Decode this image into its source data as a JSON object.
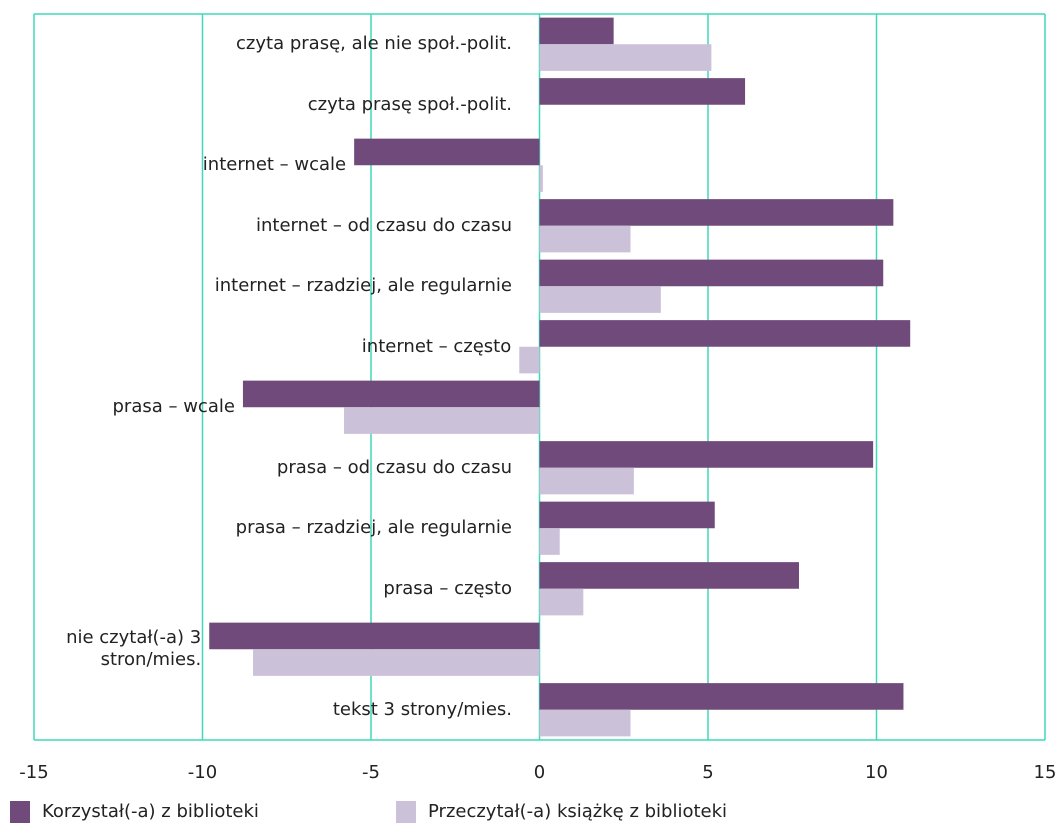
{
  "chart_data": {
    "type": "barh",
    "categories": [
      "czyta prasę, ale nie społ.-polit.",
      "czyta prasę społ.-polit.",
      "internet – wcale",
      "internet – od czasu do czasu",
      "internet – rzadziej, ale regularnie",
      "internet – często",
      "prasa – wcale",
      "prasa – od czasu do czasu",
      "prasa – rzadziej, ale regularnie",
      "prasa – często",
      "nie czytał(-a) 3 stron/mies.",
      "tekst 3 strony/mies."
    ],
    "series": [
      {
        "name": "Korzystał(-a) z biblioteki",
        "color": "#6f4a7a",
        "values": [
          2.2,
          6.1,
          -5.5,
          10.5,
          10.2,
          11.0,
          -8.8,
          9.9,
          5.2,
          7.7,
          -9.8,
          10.8
        ]
      },
      {
        "name": "Przeczytał(-a) książkę z biblioteki",
        "color": "#cbc1d9",
        "values": [
          5.1,
          0,
          0.1,
          2.7,
          3.6,
          -0.6,
          -5.8,
          2.8,
          0.6,
          1.3,
          -8.5,
          2.7
        ]
      }
    ],
    "xlim": [
      -15,
      15
    ],
    "xticks": [
      -15,
      -10,
      -5,
      0,
      5,
      10,
      15
    ],
    "grid": true,
    "grid_color": "#3fd9b9",
    "legend": "bottom-left"
  }
}
